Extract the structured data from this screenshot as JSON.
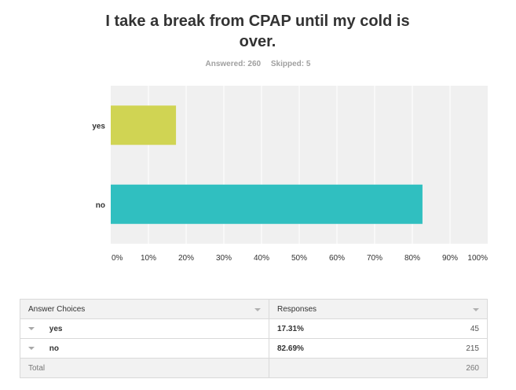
{
  "question": {
    "title": "I take a break from CPAP until my cold is over.",
    "answered": "Answered: 260",
    "skipped": "Skipped: 5"
  },
  "chart_data": {
    "type": "bar",
    "orientation": "horizontal",
    "categories": [
      "yes",
      "no"
    ],
    "values": [
      17.31,
      82.69
    ],
    "colors": [
      "#d0d453",
      "#30bfc0"
    ],
    "xlim": [
      0,
      100
    ],
    "xticks": [
      "0%",
      "10%",
      "20%",
      "30%",
      "40%",
      "50%",
      "60%",
      "70%",
      "80%",
      "90%",
      "100%"
    ],
    "grid": true,
    "title": "",
    "xlabel": "",
    "ylabel": ""
  },
  "table": {
    "headers": [
      "Answer Choices",
      "Responses"
    ],
    "rows": [
      {
        "choice": "yes",
        "percent": "17.31%",
        "count": "45"
      },
      {
        "choice": "no",
        "percent": "82.69%",
        "count": "215"
      }
    ],
    "total_label": "Total",
    "total_count": "260"
  }
}
